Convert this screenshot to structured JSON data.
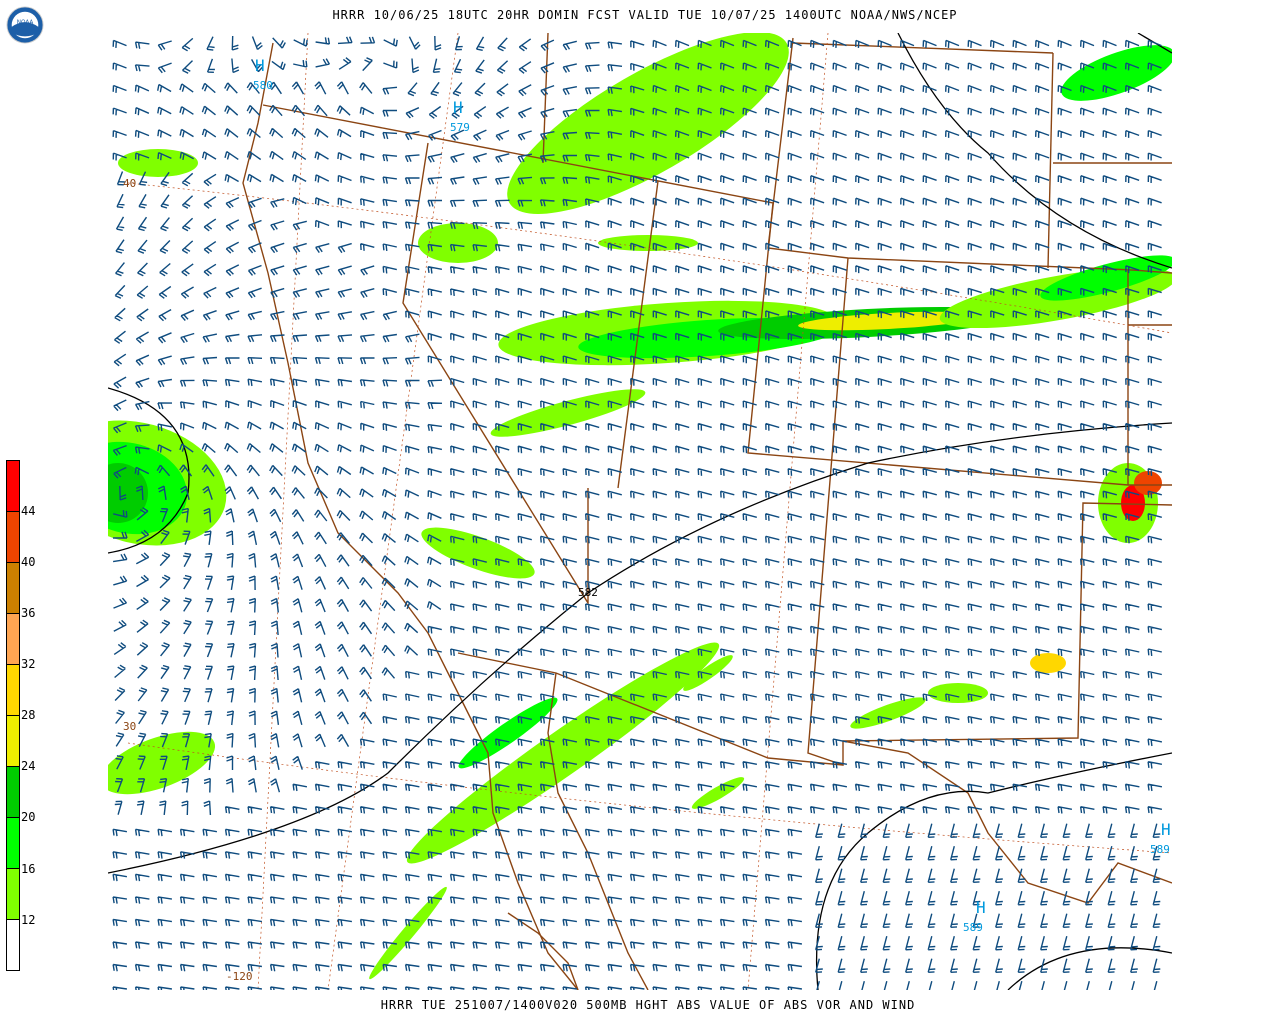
{
  "header": {
    "title": "HRRR 10/06/25 18UTC  20HR DOMIN  FCST VALID TUE 10/07/25 1400UTC  NOAA/NWS/NCEP",
    "logo_text": "NOAA"
  },
  "footer": {
    "caption": "HRRR TUE 251007/1400V020 500MB HGHT ABS VALUE OF ABS VOR AND WIND"
  },
  "colorbar": {
    "labels": [
      "44",
      "40",
      "36",
      "32",
      "28",
      "24",
      "20",
      "16",
      "12"
    ],
    "colors": [
      "#ff0000",
      "#ee4400",
      "#cc8000",
      "#ffa552",
      "#ffd700",
      "#eeee00",
      "#00cc00",
      "#00ff00",
      "#80ff00",
      "#ffffff"
    ]
  },
  "map": {
    "wind_barb_color": "#0f4c7f",
    "border_color": "#8b4513",
    "contour_color": "#000000",
    "high_label_color": "#0099dd",
    "highs": [
      {
        "symbol": "H",
        "value": "580"
      },
      {
        "symbol": "H",
        "value": "579"
      },
      {
        "symbol": "H",
        "value": "589"
      },
      {
        "symbol": "H",
        "value": "589"
      }
    ],
    "contour_label": "582",
    "lat_labels": [
      "40",
      "30"
    ],
    "lon_labels": [
      "-120"
    ]
  }
}
